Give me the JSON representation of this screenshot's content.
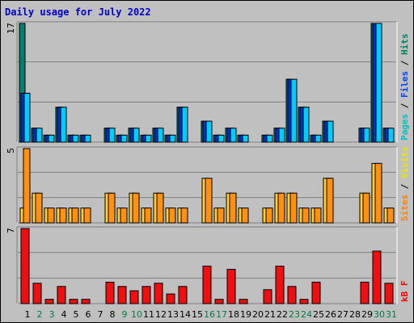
{
  "chart_data": {
    "type": "bar",
    "title": "Daily usage for July 2022",
    "categories": [
      "1",
      "2",
      "3",
      "4",
      "5",
      "6",
      "7",
      "8",
      "9",
      "10",
      "11",
      "12",
      "13",
      "14",
      "15",
      "16",
      "17",
      "18",
      "19",
      "20",
      "21",
      "22",
      "23",
      "24",
      "25",
      "26",
      "27",
      "28",
      "29",
      "30",
      "31"
    ],
    "weekend_days": [
      2,
      3,
      9,
      10,
      16,
      17,
      23,
      24,
      30,
      31
    ],
    "panels": [
      {
        "name": "pages-files-hits",
        "ymax": 17,
        "ymax_label": "17",
        "legend": [
          {
            "text": "Pages",
            "color": "#00c0c0"
          },
          {
            "text": " / ",
            "color": "#000000"
          },
          {
            "text": "Files",
            "color": "#0040ff"
          },
          {
            "text": " / ",
            "color": "#000000"
          },
          {
            "text": "Hits",
            "color": "#008060"
          }
        ],
        "series": [
          {
            "name": "Hits",
            "color": "#008070",
            "values": [
              17,
              2,
              1,
              5,
              1,
              1,
              0,
              2,
              1,
              2,
              1,
              2,
              1,
              5,
              0,
              3,
              1,
              2,
              1,
              0,
              1,
              2,
              9,
              5,
              1,
              3,
              0,
              0,
              2,
              17,
              2
            ]
          },
          {
            "name": "Files",
            "color": "#0030cc",
            "values": [
              7,
              2,
              1,
              5,
              1,
              1,
              0,
              2,
              1,
              2,
              1,
              2,
              1,
              5,
              0,
              3,
              1,
              2,
              1,
              0,
              1,
              2,
              9,
              5,
              1,
              3,
              0,
              0,
              2,
              17,
              2
            ]
          },
          {
            "name": "Pages",
            "color": "#00ccff",
            "values": [
              7,
              2,
              1,
              5,
              1,
              1,
              0,
              2,
              1,
              2,
              1,
              2,
              1,
              5,
              0,
              3,
              1,
              2,
              1,
              0,
              1,
              2,
              9,
              5,
              1,
              3,
              0,
              0,
              2,
              17,
              2
            ]
          }
        ]
      },
      {
        "name": "visits-sites",
        "ymax": 5,
        "ymax_label": "5",
        "legend": [
          {
            "text": "Sites",
            "color": "#ff8000"
          },
          {
            "text": " / ",
            "color": "#000000"
          },
          {
            "text": "Visits",
            "color": "#e8e800"
          }
        ],
        "series": [
          {
            "name": "Visits",
            "color": "#ffd030",
            "values": [
              1,
              2,
              1,
              1,
              1,
              1,
              0,
              2,
              1,
              2,
              1,
              2,
              1,
              1,
              0,
              3,
              1,
              2,
              1,
              0,
              1,
              2,
              2,
              1,
              1,
              3,
              0,
              0,
              2,
              4,
              1
            ]
          },
          {
            "name": "Sites",
            "color": "#ff9010",
            "values": [
              5,
              2,
              1,
              1,
              1,
              1,
              0,
              2,
              1,
              2,
              1,
              2,
              1,
              1,
              0,
              3,
              1,
              2,
              1,
              0,
              1,
              2,
              2,
              1,
              1,
              3,
              0,
              0,
              2,
              4,
              1
            ]
          }
        ]
      },
      {
        "name": "kbytes",
        "ymax": 7,
        "ymax_label": "7",
        "legend": [
          {
            "text": "kB F",
            "color": "#ff0000"
          }
        ],
        "series": [
          {
            "name": "kB F",
            "color": "#ee1010",
            "values": [
              7,
              1.9,
              0.4,
              1.6,
              0.4,
              0.4,
              0,
              2,
              1.6,
              1.2,
              1.6,
              1.9,
              0.9,
              1.6,
              0,
              3.5,
              0.4,
              3.2,
              0.4,
              0,
              1.3,
              3.5,
              1.6,
              0.4,
              2,
              0,
              0,
              0,
              2,
              4.9,
              1.9
            ]
          }
        ]
      }
    ]
  }
}
